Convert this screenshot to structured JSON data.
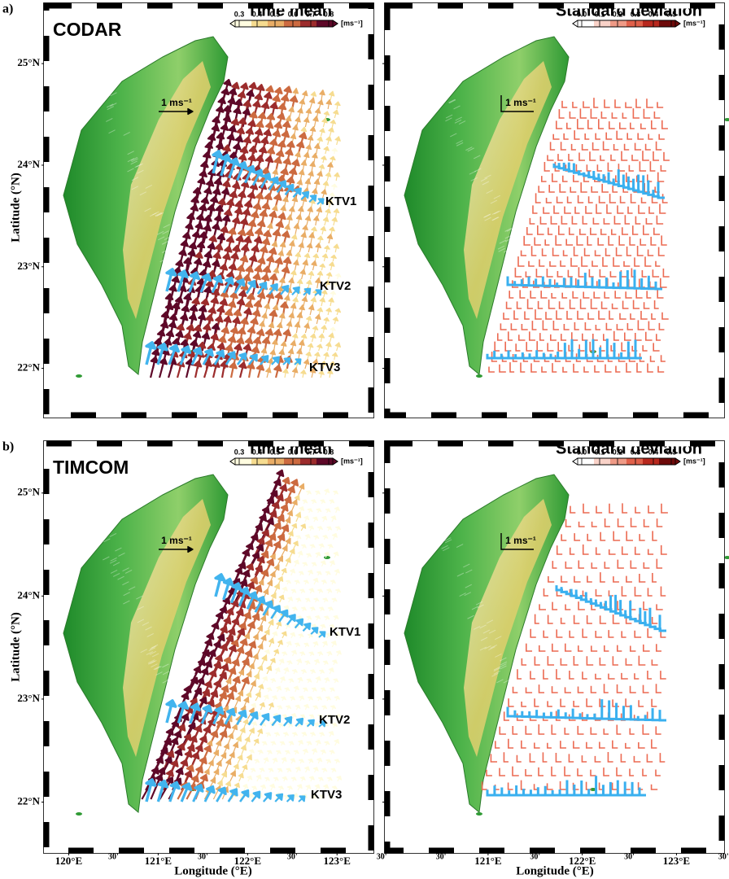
{
  "figure": {
    "xlabel": "Longitude (°E)",
    "ylabel": "Latitude (°N)",
    "rows": [
      {
        "label": "a)",
        "model": "CODAR",
        "ylim": [
          21.54,
          25.57
        ]
      },
      {
        "label": "b)",
        "model": "TIMCOM",
        "ylim": [
          21.53,
          25.48
        ]
      }
    ],
    "columns": [
      {
        "title": "Time mean",
        "xlim": [
          119.75,
          123.38
        ],
        "scale_label": "1 ms⁻¹",
        "colorbar": {
          "unit": "[ms⁻¹]",
          "lim": [
            0.25,
            0.85
          ],
          "ticks": [
            0.3,
            0.4,
            0.5,
            0.6,
            0.7,
            0.8
          ],
          "colors": [
            "#fffce0",
            "#f6dc90",
            "#e9ad66",
            "#cc6a40",
            "#9c2c2c",
            "#5e0828"
          ]
        }
      },
      {
        "title": "Standard deviation",
        "xlim": [
          119.93,
          123.48
        ],
        "scale_label": "1 ms⁻¹",
        "colorbar": {
          "unit": "[ms⁻¹]",
          "lim": [
            -0.05,
            0.55
          ],
          "ticks": [
            {
              "value": 0,
              "label": "0.0"
            },
            0.1,
            0.2,
            0.3,
            0.4,
            0.5
          ],
          "colors": [
            "#ffffff",
            "#f9d2c8",
            "#ef9a86",
            "#e0604a",
            "#b8281e",
            "#6e0a0a"
          ]
        }
      }
    ],
    "lat_ticks": [
      {
        "value": 22,
        "label": "22°N"
      },
      {
        "value": 23,
        "label": "23°N"
      },
      {
        "value": 24,
        "label": "24°N"
      },
      {
        "value": 25,
        "label": "25°N"
      }
    ],
    "lon_ticks_left": [
      {
        "value": 120,
        "label": "120°E"
      },
      {
        "value": 120.5,
        "label": "30'"
      },
      {
        "value": 121,
        "label": "121°E"
      },
      {
        "value": 121.5,
        "label": "30'"
      },
      {
        "value": 122,
        "label": "122°E"
      },
      {
        "value": 122.5,
        "label": "30'"
      },
      {
        "value": 123,
        "label": "123°E"
      },
      {
        "value": 123.5,
        "label": "30'"
      }
    ],
    "lon_ticks_right": [
      {
        "value": 120.5,
        "label": "30'"
      },
      {
        "value": 121,
        "label": "121°E"
      },
      {
        "value": 121.5,
        "label": "30'"
      },
      {
        "value": 122,
        "label": "122°E"
      },
      {
        "value": 122.5,
        "label": "30'"
      },
      {
        "value": 123,
        "label": "123°E"
      },
      {
        "value": 123.5,
        "label": "30'"
      }
    ],
    "transects": [
      "KTV1",
      "KTV2",
      "KTV3"
    ]
  }
}
